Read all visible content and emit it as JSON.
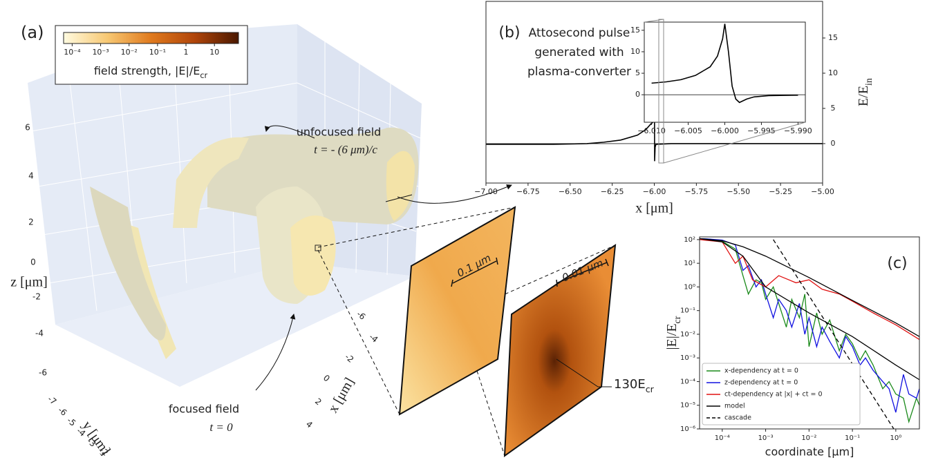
{
  "chart_data": [
    {
      "type": "volume",
      "panel_label": "(a)",
      "colorbar": {
        "range": [
          5e-05,
          70
        ],
        "log": true,
        "colors": [
          "#fffbe0",
          "#f7c873",
          "#e07a1e",
          "#b0450a",
          "#4a1800"
        ],
        "ticks": [
          {
            "value": 0.0001,
            "label": "10⁻⁴"
          },
          {
            "value": 0.001,
            "label": "10⁻³"
          },
          {
            "value": 0.01,
            "label": "10⁻²"
          },
          {
            "value": 0.1,
            "label": "10⁻¹"
          },
          1,
          10
        ],
        "label": "field strength, |E|/E",
        "label_sub": "cr"
      },
      "zlabel": "z [μm]",
      "ylabel": "y [μm]",
      "xlabel": "x [μm]",
      "zticks": [
        6,
        4,
        2,
        0,
        -2,
        -4,
        -6
      ],
      "yticks": [
        -7,
        -6,
        -5,
        -4,
        -3,
        -2
      ],
      "xticks": [
        -6,
        -4,
        -2,
        0,
        2,
        4
      ],
      "annotations": [
        "unfocused field",
        "t = - (6 μm)/c",
        "focused field",
        "t = 0"
      ],
      "zoom_labels": [
        "0.1 μm",
        "0.01 μm"
      ],
      "peak_label": "130E",
      "peak_label_sub": "cr"
    },
    {
      "type": "line",
      "panel_label": "(b)",
      "annotation": [
        "Attosecond pulse",
        "generated with",
        "plasma-converter"
      ],
      "xlabel": "x [μm]",
      "ylabel": "E/E",
      "ylabel_sub": "in",
      "xlim": [
        -7,
        -5
      ],
      "ylim": [
        -5.6,
        20.2
      ],
      "xticks": [
        {
          "value": -7,
          "label": "−7.00"
        },
        {
          "value": -6.75,
          "label": "−6.75"
        },
        {
          "value": -6.5,
          "label": "−6.50"
        },
        {
          "value": -6.25,
          "label": "−6.25"
        },
        {
          "value": -6,
          "label": "−6.00"
        },
        {
          "value": -5.75,
          "label": "−5.75"
        },
        {
          "value": -5.5,
          "label": "−5.50"
        },
        {
          "value": -5.25,
          "label": "−5.25"
        },
        {
          "value": -5,
          "label": "−5.00"
        }
      ],
      "yticks": [
        0,
        5,
        10,
        15
      ],
      "series": [
        {
          "color": "#000000",
          "x": [
            -7,
            -6.8,
            -6.6,
            -6.4,
            -6.3,
            -6.2,
            -6.1,
            -6.05,
            -6.02,
            -6.01,
            -6.003,
            -6.0,
            -5.998,
            -5.995,
            -5.99,
            -5.9,
            -5.5,
            -5.0
          ],
          "values": [
            -0.1,
            -0.1,
            -0.1,
            0,
            0.2,
            0.5,
            1.2,
            2,
            2.8,
            3,
            6,
            16,
            -2.5,
            -0.5,
            -0.1,
            0,
            0,
            0
          ]
        }
      ]
    },
    {
      "type": "line",
      "inset": true,
      "xlim": [
        -6.011,
        -5.989
      ],
      "ylim": [
        -6.4,
        16.9
      ],
      "xticks": [
        {
          "value": -6.01,
          "label": "−6.010"
        },
        {
          "value": -6.005,
          "label": "−6.005"
        },
        {
          "value": -6.0,
          "label": "−6.000"
        },
        {
          "value": -5.995,
          "label": "−5.995"
        },
        {
          "value": -5.99,
          "label": "−5.990"
        }
      ],
      "yticks": [
        0,
        5,
        10,
        15
      ],
      "series": [
        {
          "color": "#000000",
          "x": [
            -6.01,
            -6.008,
            -6.006,
            -6.004,
            -6.002,
            -6.001,
            -6.0003,
            -6.0,
            -5.9995,
            -5.999,
            -5.9985,
            -5.998,
            -5.997,
            -5.996,
            -5.994,
            -5.99
          ],
          "values": [
            2.7,
            3.0,
            3.5,
            4.5,
            6.5,
            9,
            13,
            16.5,
            10,
            2,
            -1,
            -1.8,
            -1.0,
            -0.5,
            -0.2,
            -0.1
          ]
        }
      ]
    },
    {
      "type": "line",
      "panel_label": "(c)",
      "log_x": true,
      "log_y": true,
      "xlabel": "coordinate [μm]",
      "ylabel": "|E|/E",
      "ylabel_sub": "cr",
      "xlim": [
        3e-05,
        3.5
      ],
      "ylim": [
        1e-06,
        130
      ],
      "xticks": [
        {
          "value": 0.0001,
          "label": "10⁻⁴"
        },
        {
          "value": 0.001,
          "label": "10⁻³"
        },
        {
          "value": 0.01,
          "label": "10⁻²"
        },
        {
          "value": 0.1,
          "label": "10⁻¹"
        },
        {
          "value": 1,
          "label": "10⁰"
        }
      ],
      "yticks": [
        {
          "value": 1e-06,
          "label": "10⁻⁶"
        },
        {
          "value": 1e-05,
          "label": "10⁻⁵"
        },
        {
          "value": 0.0001,
          "label": "10⁻⁴"
        },
        {
          "value": 0.001,
          "label": "10⁻³"
        },
        {
          "value": 0.01,
          "label": "10⁻²"
        },
        {
          "value": 0.1,
          "label": "10⁻¹"
        },
        {
          "value": 1,
          "label": "10⁰"
        },
        {
          "value": 10,
          "label": "10¹"
        },
        {
          "value": 100,
          "label": "10²"
        }
      ],
      "legend": "lower left",
      "series": [
        {
          "name": "x-dependency at t = 0",
          "color": "#1a8a1a",
          "x": [
            3e-05,
            5e-05,
            0.0001,
            0.0002,
            0.0003,
            0.0004,
            0.0006,
            0.0008,
            0.001,
            0.0015,
            0.002,
            0.003,
            0.004,
            0.006,
            0.008,
            0.01,
            0.015,
            0.02,
            0.03,
            0.05,
            0.07,
            0.1,
            0.15,
            0.2,
            0.3,
            0.5,
            0.7,
            1,
            1.5,
            2,
            3,
            3.5
          ],
          "values": [
            110,
            105,
            85,
            40,
            3,
            0.5,
            2,
            1.5,
            0.3,
            1,
            0.2,
            0.02,
            0.3,
            0.05,
            0.5,
            0.003,
            0.08,
            0.01,
            0.04,
            0.002,
            0.01,
            0.004,
            0.0008,
            0.002,
            0.0005,
            5e-05,
            0.0001,
            3e-05,
            2e-05,
            2e-06,
            2e-05,
            1e-05
          ]
        },
        {
          "name": "z-dependency at t = 0",
          "color": "#1010e0",
          "x": [
            3e-05,
            5e-05,
            0.0001,
            0.0002,
            0.0003,
            0.0004,
            0.0006,
            0.0008,
            0.001,
            0.0015,
            0.002,
            0.003,
            0.004,
            0.006,
            0.008,
            0.01,
            0.015,
            0.02,
            0.03,
            0.05,
            0.07,
            0.1,
            0.15,
            0.2,
            0.3,
            0.5,
            0.7,
            1,
            1.5,
            2,
            3,
            3.5
          ],
          "values": [
            110,
            105,
            95,
            60,
            5,
            8,
            1,
            2,
            0.5,
            0.05,
            0.3,
            0.1,
            0.02,
            0.2,
            0.01,
            0.05,
            0.003,
            0.02,
            0.005,
            0.001,
            0.008,
            0.003,
            0.0005,
            0.001,
            0.0003,
            0.0001,
            5e-05,
            5e-06,
            0.0002,
            3e-05,
            2e-05,
            5e-05
          ]
        },
        {
          "name": "ct-dependency at |x| + ct = 0",
          "color": "#e01010",
          "x": [
            3e-05,
            0.0001,
            0.0002,
            0.0003,
            0.0005,
            0.001,
            0.002,
            0.005,
            0.01,
            0.02,
            0.05,
            0.1,
            0.3,
            1,
            3.5
          ],
          "values": [
            100,
            80,
            10,
            20,
            2,
            1,
            3,
            1.5,
            2,
            0.8,
            0.5,
            0.25,
            0.08,
            0.025,
            0.006
          ]
        },
        {
          "name": "model",
          "color": "#000000",
          "x": [
            3e-05,
            0.0001,
            0.0003,
            0.001,
            0.01,
            0.1,
            1,
            3.5,
            null,
            3e-05,
            0.0001,
            0.0003,
            0.001,
            0.01,
            0.1,
            1,
            3.5
          ],
          "values": [
            110,
            90,
            50,
            20,
            2.5,
            0.27,
            0.03,
            0.008,
            null,
            110,
            80,
            20,
            1,
            0.08,
            0.008,
            0.0005,
            0.00012
          ]
        },
        {
          "name": "cascade",
          "color": "#000000",
          "style": "dashed",
          "x": [
            0.0015,
            0.9
          ],
          "values": [
            100,
            1e-06
          ]
        }
      ]
    }
  ]
}
